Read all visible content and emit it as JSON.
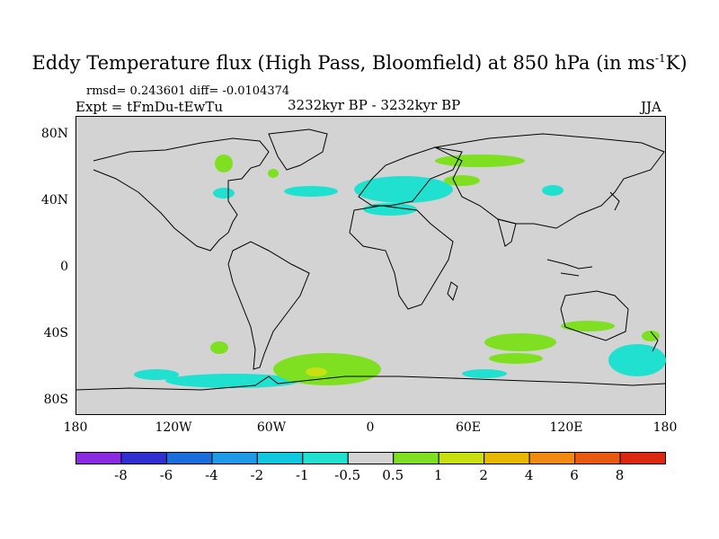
{
  "title": "Eddy Temperature flux (High Pass, Bloomfield) at 850 hPa (in ms",
  "title_sup": "-1",
  "title_end": "K)",
  "stats": "rmsd= 0.243601  diff= -0.0104374",
  "experiment": "Expt = tFmDu-tEwTu",
  "period": "3232kyr BP - 3232kyr BP",
  "season": "JJA",
  "lat_labels": [
    "80N",
    "40N",
    "0",
    "40S",
    "80S"
  ],
  "lon_labels": [
    "180",
    "120W",
    "60W",
    "0",
    "60E",
    "120E",
    "180"
  ],
  "colorbar": {
    "labels": [
      "-8",
      "-6",
      "-4",
      "-2",
      "-1",
      "-0.5",
      "0.5",
      "1",
      "2",
      "4",
      "6",
      "8"
    ],
    "colors": [
      "#8a2be2",
      "#3030d0",
      "#1a6fdc",
      "#1e9ae6",
      "#10c8e0",
      "#20e0d0",
      "#d3d3d3",
      "#7ee020",
      "#c8e010",
      "#e6b800",
      "#f08a10",
      "#e85a10",
      "#dc2810"
    ]
  },
  "map": {
    "background": "#d3d3d3",
    "lat_range": [
      -90,
      90
    ],
    "lon_range": [
      -180,
      180
    ]
  }
}
